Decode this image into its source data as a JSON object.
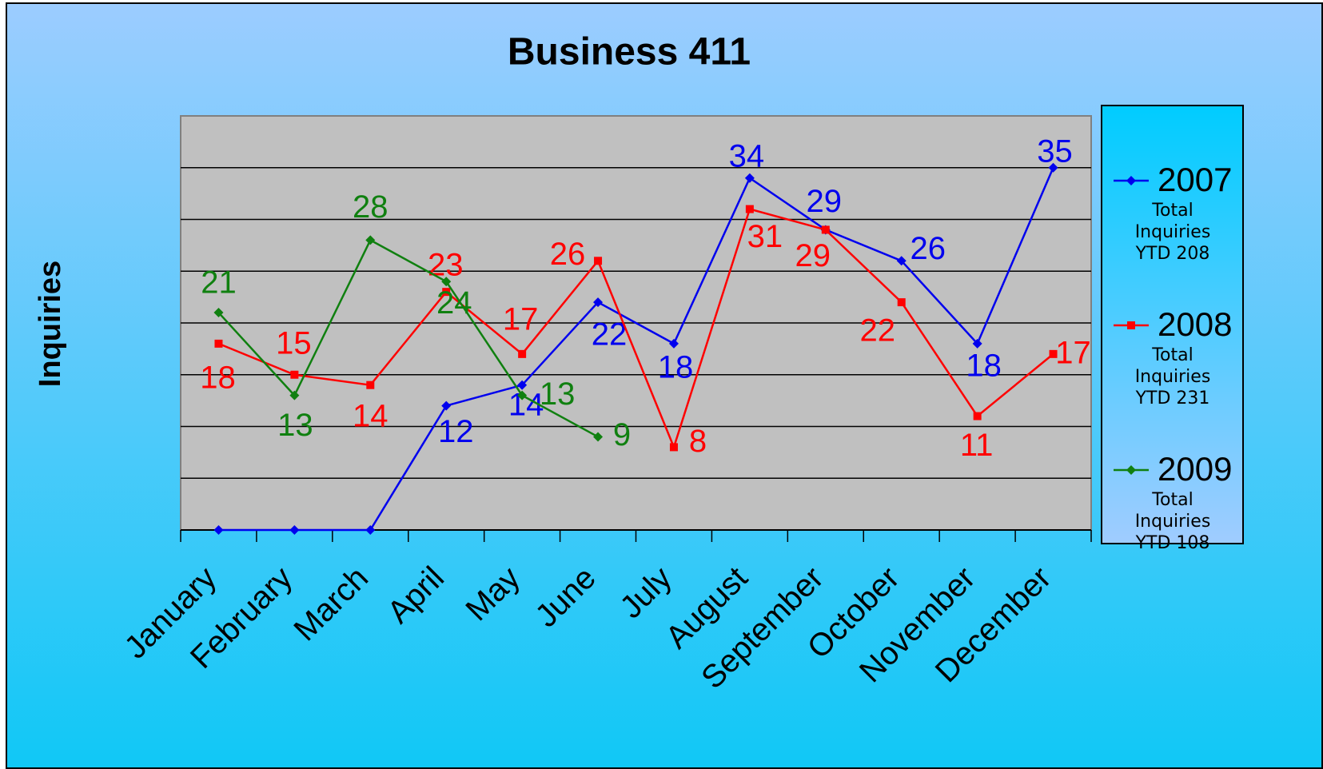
{
  "chart_data": {
    "type": "line",
    "title": "Business 411",
    "y_label": "Inquiries",
    "categories": [
      "January",
      "February",
      "March",
      "April",
      "May",
      "June",
      "July",
      "August",
      "September",
      "October",
      "November",
      "December"
    ],
    "ylim": [
      0,
      40
    ],
    "yticks": [
      5,
      10,
      15,
      20,
      25,
      30,
      35
    ],
    "grid": true,
    "legend": "right",
    "series": [
      {
        "name": "2007",
        "color": "#0000ee",
        "marker": "diamond",
        "values": [
          0,
          0,
          0,
          12,
          14,
          22,
          18,
          34,
          29,
          26,
          18,
          35
        ],
        "value_labels": [
          null,
          null,
          null,
          "12",
          "14",
          "22",
          "18",
          "34",
          "29",
          "26",
          "18",
          "35"
        ],
        "legend_note": [
          "Total",
          "Inquiries",
          "YTD 208"
        ]
      },
      {
        "name": "2008",
        "color": "#ff0000",
        "marker": "square",
        "values": [
          18,
          15,
          14,
          23,
          17,
          26,
          8,
          31,
          29,
          22,
          11,
          17
        ],
        "legend_note": [
          "Total",
          "Inquiries",
          "YTD 231"
        ]
      },
      {
        "name": "2009",
        "color": "#108010",
        "marker": "diamond",
        "values": [
          21,
          13,
          28,
          24,
          13,
          9,
          null,
          null,
          null,
          null,
          null,
          null
        ],
        "legend_note": [
          "Total",
          "Inquiries",
          "YTD 108"
        ]
      }
    ]
  }
}
